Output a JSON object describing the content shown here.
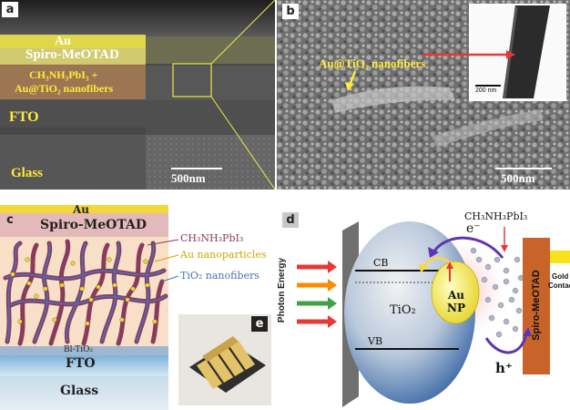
{
  "panel_a": {
    "letter": "a",
    "layers": {
      "au": "Au",
      "spiro": "Spiro-MeOTAD",
      "perovskite_line1": "CH₃NH₃PbI₃ +",
      "perovskite_line2": "Au@TiO₂ nanofibers",
      "fto": "FTO",
      "glass": "Glass"
    },
    "scale": "500nm"
  },
  "panel_b": {
    "letter": "b",
    "label": "Au@TiO₂ nanofibers",
    "inset_scale": "200 nm",
    "scale": "500nm"
  },
  "panel_c": {
    "letter": "c",
    "layers": {
      "au": "Au",
      "spiro": "Spiro-MeOTAD",
      "bl": "Bl-TiO₂",
      "fto": "FTO",
      "glass": "Glass"
    },
    "legend": {
      "perovskite": "CH₃NH₃PbI₃",
      "au_np": "Au nanoparticles",
      "tio2_nf": "TiO₂ nanofibers"
    },
    "inset_letter": "e"
  },
  "panel_d": {
    "letter": "d",
    "photon": "Photon Energy",
    "cb": "CB",
    "vb": "VB",
    "tio2": "TiO₂",
    "au": "Au",
    "np": "NP",
    "perovskite": "CH₃NH₃PbI₃",
    "electron": "e⁻",
    "hole": "h⁺",
    "spiro": "Spiro-MeOTAD",
    "gold_line1": "Gold",
    "gold_line2": "Contact"
  }
}
